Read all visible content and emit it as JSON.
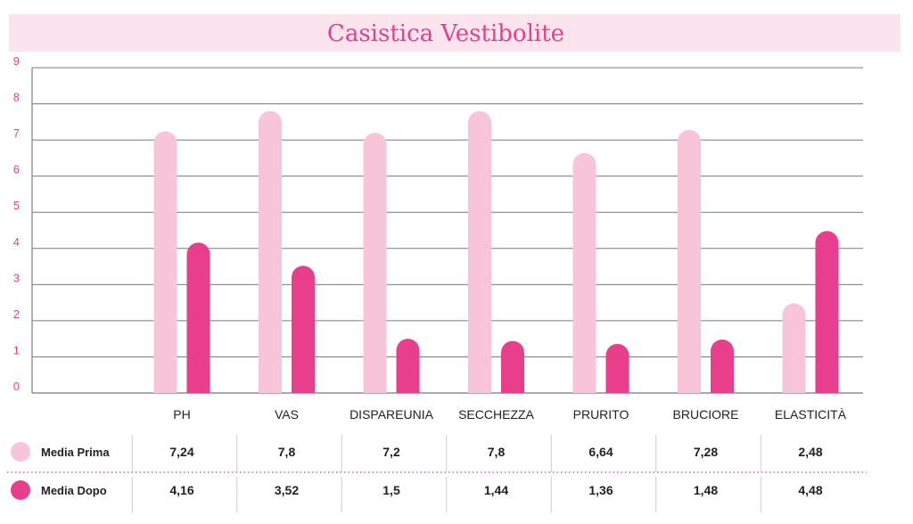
{
  "chart_data": {
    "type": "bar",
    "title": "Casistica Vestibolite",
    "categories": [
      "PH",
      "VAS",
      "DISPAREUNIA",
      "SECCHEZZA",
      "PRURITO",
      "BRUCIORE",
      "ELASTICITÀ"
    ],
    "series": [
      {
        "name": "Media Prima",
        "color": "#f7c5d7",
        "values": [
          7.24,
          7.8,
          7.2,
          7.8,
          6.64,
          7.28,
          2.48
        ],
        "labels": [
          "7,24",
          "7,8",
          "7,2",
          "7,8",
          "6,64",
          "7,28",
          "2,48"
        ]
      },
      {
        "name": "Media Dopo",
        "color": "#e83e8c",
        "values": [
          4.16,
          3.52,
          1.5,
          1.44,
          1.36,
          1.48,
          4.48
        ],
        "labels": [
          "4,16",
          "3,52",
          "1,5",
          "1,44",
          "1,36",
          "1,48",
          "4,48"
        ]
      }
    ],
    "ylim": [
      0,
      9
    ],
    "yticks": [
      "0",
      "1",
      "2",
      "3",
      "4",
      "5",
      "6",
      "7",
      "8",
      "9"
    ],
    "grid": true,
    "legend": "data-table-below"
  }
}
